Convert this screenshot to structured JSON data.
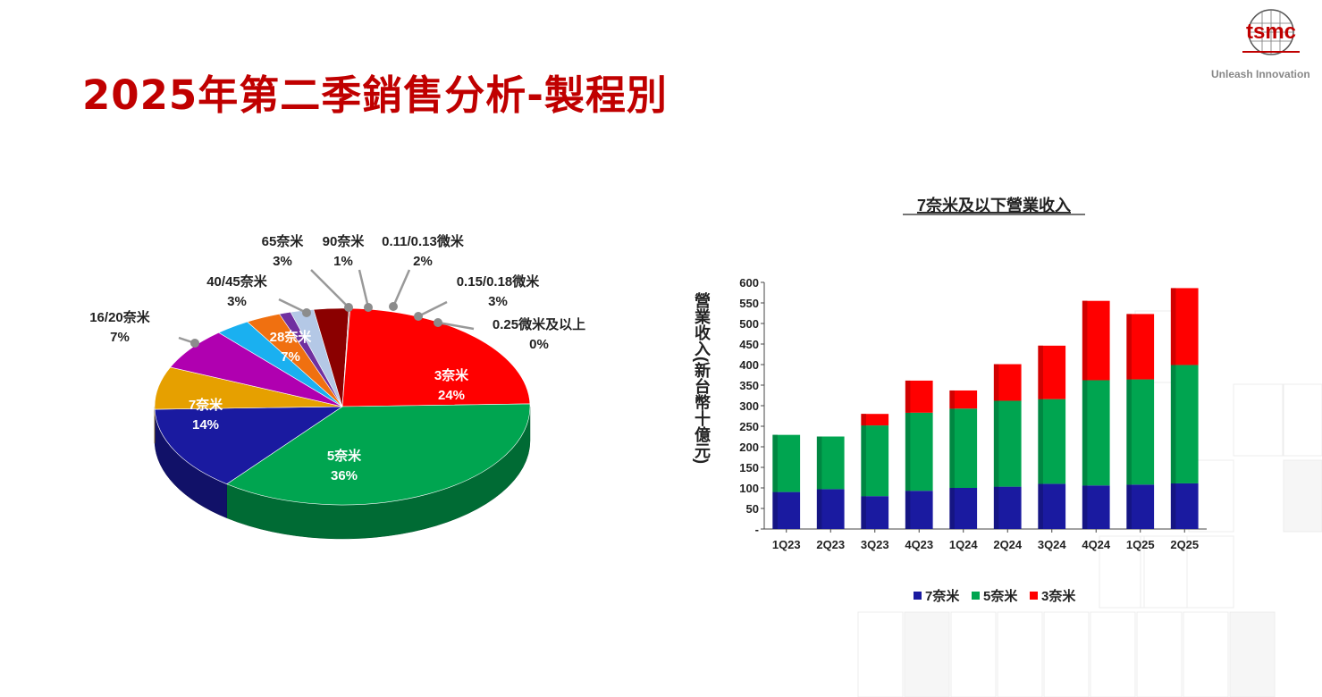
{
  "page": {
    "title": "2025年第二季銷售分析-製程別",
    "logo_text": "tsmc",
    "tagline": "Unleash Innovation",
    "colors": {
      "title": "#c00000",
      "n7": "#1a1aa0",
      "n5": "#00a550",
      "n3": "#ff0000"
    }
  },
  "chart_data": [
    {
      "type": "pie",
      "slices": [
        {
          "name": "3奈米",
          "value": 24,
          "label": "24%",
          "color": "#ff0000"
        },
        {
          "name": "5奈米",
          "value": 36,
          "label": "36%",
          "color": "#00a550"
        },
        {
          "name": "7奈米",
          "value": 14,
          "label": "14%",
          "color": "#1a1aa0"
        },
        {
          "name": "16/20奈米",
          "value": 7,
          "label": "7%",
          "color": "#e6a000"
        },
        {
          "name": "28奈米",
          "value": 7,
          "label": "7%",
          "color": "#b000b0"
        },
        {
          "name": "40/45奈米",
          "value": 3,
          "label": "3%",
          "color": "#1ab0f0"
        },
        {
          "name": "65奈米",
          "value": 3,
          "label": "3%",
          "color": "#f07010"
        },
        {
          "name": "90奈米",
          "value": 1,
          "label": "1%",
          "color": "#7030a0"
        },
        {
          "name": "0.11/0.13微米",
          "value": 2,
          "label": "2%",
          "color": "#b4c8e6"
        },
        {
          "name": "0.15/0.18微米",
          "value": 3,
          "label": "3%",
          "color": "#8b0000"
        },
        {
          "name": "0.25微米及以上",
          "value": 0,
          "label": "0%",
          "color": "#a0a0a0"
        }
      ]
    },
    {
      "type": "bar",
      "stacked": true,
      "title": "7奈米及以下營業收入",
      "ylabel": "營業收入(新台幣十億元)",
      "ylim": [
        0,
        600
      ],
      "yticks": [
        "-",
        "50",
        "100",
        "150",
        "200",
        "250",
        "300",
        "350",
        "400",
        "450",
        "500",
        "550",
        "600"
      ],
      "categories": [
        "1Q23",
        "2Q23",
        "3Q23",
        "4Q23",
        "1Q24",
        "2Q24",
        "3Q24",
        "4Q24",
        "1Q25",
        "2Q25"
      ],
      "series": [
        {
          "name": "7奈米",
          "color": "#1a1aa0",
          "values": [
            90,
            97,
            80,
            93,
            100,
            103,
            110,
            106,
            108,
            111
          ]
        },
        {
          "name": "5奈米",
          "color": "#00a550",
          "values": [
            139,
            128,
            172,
            190,
            193,
            209,
            206,
            256,
            256,
            288
          ]
        },
        {
          "name": "3奈米",
          "color": "#ff0000",
          "values": [
            0,
            0,
            28,
            78,
            44,
            89,
            130,
            193,
            159,
            187
          ]
        }
      ],
      "legend": "bottom"
    }
  ]
}
